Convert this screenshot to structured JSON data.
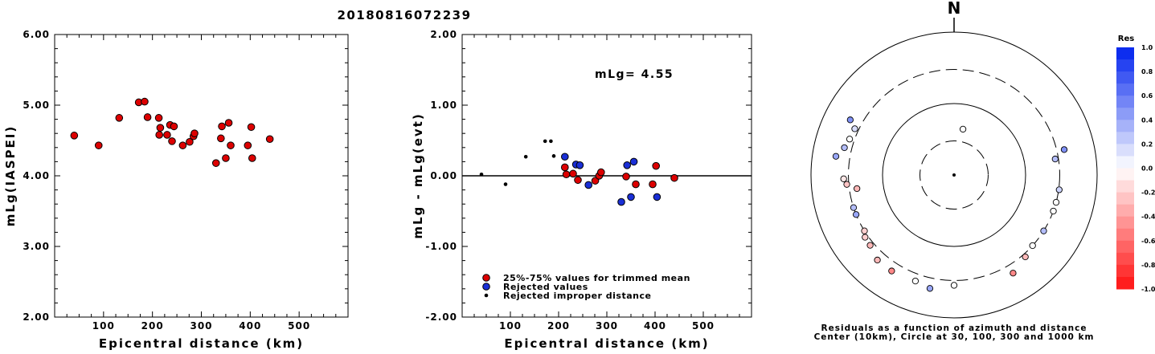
{
  "title": "20180816072239",
  "chart_data": [
    {
      "type": "scatter",
      "ylabel": "mLg(IASPEI)",
      "xlabel": "Epicentral distance (km)",
      "xlim": [
        0,
        600
      ],
      "ylim": [
        2.0,
        6.0
      ],
      "x_ticks": [
        100,
        200,
        300,
        400,
        500
      ],
      "x_tick_labels": [
        "100",
        "200",
        "300",
        "400",
        "500"
      ],
      "y_ticks": [
        2,
        3,
        4,
        5,
        6
      ],
      "y_tick_labels": [
        "2.00",
        "3.00",
        "4.00",
        "5.00",
        "6.00"
      ],
      "marker_color": "#dd0000",
      "points": [
        {
          "x": 40,
          "y": 4.57
        },
        {
          "x": 90,
          "y": 4.43
        },
        {
          "x": 132,
          "y": 4.82
        },
        {
          "x": 172,
          "y": 5.04
        },
        {
          "x": 184,
          "y": 5.05
        },
        {
          "x": 190,
          "y": 4.83
        },
        {
          "x": 213,
          "y": 4.82
        },
        {
          "x": 214,
          "y": 4.58
        },
        {
          "x": 216,
          "y": 4.68
        },
        {
          "x": 230,
          "y": 4.58
        },
        {
          "x": 236,
          "y": 4.72
        },
        {
          "x": 240,
          "y": 4.49
        },
        {
          "x": 244,
          "y": 4.7
        },
        {
          "x": 262,
          "y": 4.43
        },
        {
          "x": 276,
          "y": 4.48
        },
        {
          "x": 284,
          "y": 4.56
        },
        {
          "x": 286,
          "y": 4.6
        },
        {
          "x": 330,
          "y": 4.18
        },
        {
          "x": 340,
          "y": 4.53
        },
        {
          "x": 342,
          "y": 4.7
        },
        {
          "x": 350,
          "y": 4.25
        },
        {
          "x": 356,
          "y": 4.75
        },
        {
          "x": 360,
          "y": 4.43
        },
        {
          "x": 395,
          "y": 4.43
        },
        {
          "x": 402,
          "y": 4.69
        },
        {
          "x": 404,
          "y": 4.25
        },
        {
          "x": 440,
          "y": 4.52
        }
      ]
    },
    {
      "type": "scatter",
      "ylabel": "mLg - mLg(evt)",
      "xlabel": "Epicentral distance (km)",
      "xlim": [
        0,
        600
      ],
      "ylim": [
        -2.0,
        2.0
      ],
      "x_ticks": [
        100,
        200,
        300,
        400,
        500
      ],
      "x_tick_labels": [
        "100",
        "200",
        "300",
        "400",
        "500"
      ],
      "y_ticks": [
        -2,
        -1,
        0,
        1,
        2
      ],
      "y_tick_labels": [
        "-2.00",
        "-1.00",
        "0.00",
        "1.00",
        "2.00"
      ],
      "annotation": "mLg= 4.55",
      "zero_line": true,
      "legend": {
        "position": "bottom-left",
        "entries": [
          {
            "label": "25%-75% values for trimmed mean",
            "color": "#dd0000",
            "marker": "circle"
          },
          {
            "label": "Rejected values",
            "color": "#1a2fd6",
            "marker": "circle"
          },
          {
            "label": "Rejected improper distance",
            "color": "#000000",
            "marker": "dot"
          }
        ]
      },
      "series": [
        {
          "name": "25%-75% values for trimmed mean",
          "color": "#dd0000",
          "points": [
            {
              "x": 213,
              "y": 0.12
            },
            {
              "x": 216,
              "y": 0.02
            },
            {
              "x": 230,
              "y": 0.03
            },
            {
              "x": 240,
              "y": -0.06
            },
            {
              "x": 276,
              "y": -0.07
            },
            {
              "x": 284,
              "y": 0.0
            },
            {
              "x": 288,
              "y": 0.05
            },
            {
              "x": 340,
              "y": -0.01
            },
            {
              "x": 360,
              "y": -0.12
            },
            {
              "x": 395,
              "y": -0.12
            },
            {
              "x": 402,
              "y": 0.14
            },
            {
              "x": 440,
              "y": -0.03
            }
          ]
        },
        {
          "name": "Rejected values",
          "color": "#1a2fd6",
          "points": [
            {
              "x": 213,
              "y": 0.27
            },
            {
              "x": 236,
              "y": 0.16
            },
            {
              "x": 244,
              "y": 0.15
            },
            {
              "x": 262,
              "y": -0.13
            },
            {
              "x": 330,
              "y": -0.37
            },
            {
              "x": 342,
              "y": 0.15
            },
            {
              "x": 350,
              "y": -0.3
            },
            {
              "x": 356,
              "y": 0.2
            },
            {
              "x": 404,
              "y": -0.3
            }
          ]
        },
        {
          "name": "Rejected improper distance",
          "color": "#000000",
          "points": [
            {
              "x": 40,
              "y": 0.02
            },
            {
              "x": 90,
              "y": -0.12
            },
            {
              "x": 132,
              "y": 0.27
            },
            {
              "x": 172,
              "y": 0.49
            },
            {
              "x": 184,
              "y": 0.49
            },
            {
              "x": 190,
              "y": 0.28
            }
          ]
        }
      ]
    },
    {
      "type": "scatter",
      "subtype": "polar-residual-map",
      "north_label": "N",
      "caption": [
        "Residuals as a function of azimuth and distance",
        "Center (10km), Circle at 30, 100, 300 and 1000 km"
      ],
      "rings_km": [
        30,
        100,
        300,
        1000
      ],
      "points": [
        {
          "az": 11,
          "dist_km": 45,
          "res": 0.0
        },
        {
          "az": 289,
          "dist_km": 350,
          "res": 0.0
        },
        {
          "az": 295,
          "dist_km": 340,
          "res": 0.15
        },
        {
          "az": 298,
          "dist_km": 440,
          "res": 0.5
        },
        {
          "az": 279,
          "dist_km": 470,
          "res": 0.4
        },
        {
          "az": 284,
          "dist_km": 380,
          "res": 0.3
        },
        {
          "az": 268,
          "dist_km": 350,
          "res": -0.1
        },
        {
          "az": 265,
          "dist_km": 320,
          "res": -0.25
        },
        {
          "az": 262,
          "dist_km": 235,
          "res": -0.3
        },
        {
          "az": 252,
          "dist_km": 300,
          "res": 0.3
        },
        {
          "az": 248,
          "dist_km": 300,
          "res": 0.4
        },
        {
          "az": 238,
          "dist_km": 300,
          "res": -0.2
        },
        {
          "az": 235,
          "dist_km": 330,
          "res": -0.2
        },
        {
          "az": 230,
          "dist_km": 340,
          "res": -0.3
        },
        {
          "az": 222,
          "dist_km": 400,
          "res": -0.3
        },
        {
          "az": 213,
          "dist_km": 400,
          "res": -0.5
        },
        {
          "az": 200,
          "dist_km": 380,
          "res": 0.0
        },
        {
          "az": 192,
          "dist_km": 420,
          "res": 0.4
        },
        {
          "az": 180,
          "dist_km": 350,
          "res": 0.0
        },
        {
          "az": 149,
          "dist_km": 400,
          "res": -0.5
        },
        {
          "az": 139,
          "dist_km": 330,
          "res": -0.3
        },
        {
          "az": 132,
          "dist_km": 300,
          "res": 0.0
        },
        {
          "az": 122,
          "dist_km": 300,
          "res": 0.3
        },
        {
          "az": 110,
          "dist_km": 300,
          "res": 0.0
        },
        {
          "az": 105,
          "dist_km": 300,
          "res": 0.0
        },
        {
          "az": 98,
          "dist_km": 305,
          "res": 0.2
        },
        {
          "az": 81,
          "dist_km": 270,
          "res": 0.3
        },
        {
          "az": 77,
          "dist_km": 380,
          "res": 0.5
        }
      ]
    },
    {
      "type": "heatmap",
      "subtype": "colorbar",
      "title": "Res",
      "ticks": [
        1.0,
        0.8,
        0.6,
        0.4,
        0.2,
        0.0,
        -0.2,
        -0.4,
        -0.6,
        -0.8,
        -1.0
      ],
      "tick_labels": [
        "1.0",
        "0.8",
        "0.6",
        "0.4",
        "0.2",
        "0.0",
        "-0.2",
        "-0.4",
        "-0.6",
        "-0.8",
        "-1.0"
      ],
      "positive_color": "#0022ee",
      "negative_color": "#ff1111"
    }
  ]
}
